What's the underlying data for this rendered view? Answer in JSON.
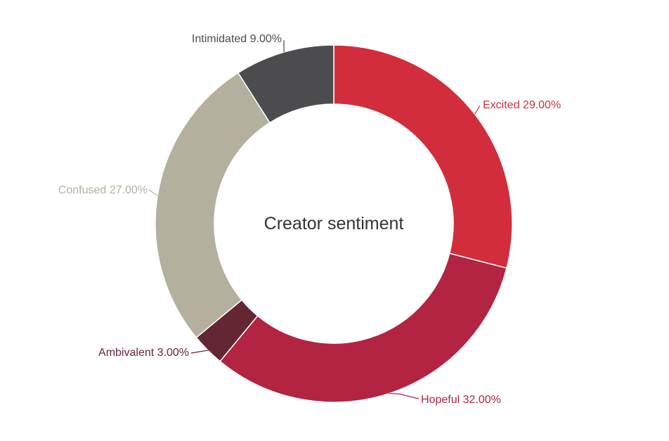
{
  "chart_data": {
    "type": "pie",
    "style": "donut",
    "title": "Creator sentiment",
    "slices": [
      {
        "label": "Excited",
        "value": 29.0,
        "display": "Excited 29.00%",
        "color": "#d22d3d"
      },
      {
        "label": "Hopeful",
        "value": 32.0,
        "display": "Hopeful 32.00%",
        "color": "#b22441"
      },
      {
        "label": "Ambivalent",
        "value": 3.0,
        "display": "Ambivalent 3.00%",
        "color": "#642632"
      },
      {
        "label": "Confused",
        "value": 27.0,
        "display": "Confused 27.00%",
        "color": "#b3b09d"
      },
      {
        "label": "Intimidated",
        "value": 9.0,
        "display": "Intimidated 9.00%",
        "color": "#4c4c4e"
      }
    ]
  }
}
